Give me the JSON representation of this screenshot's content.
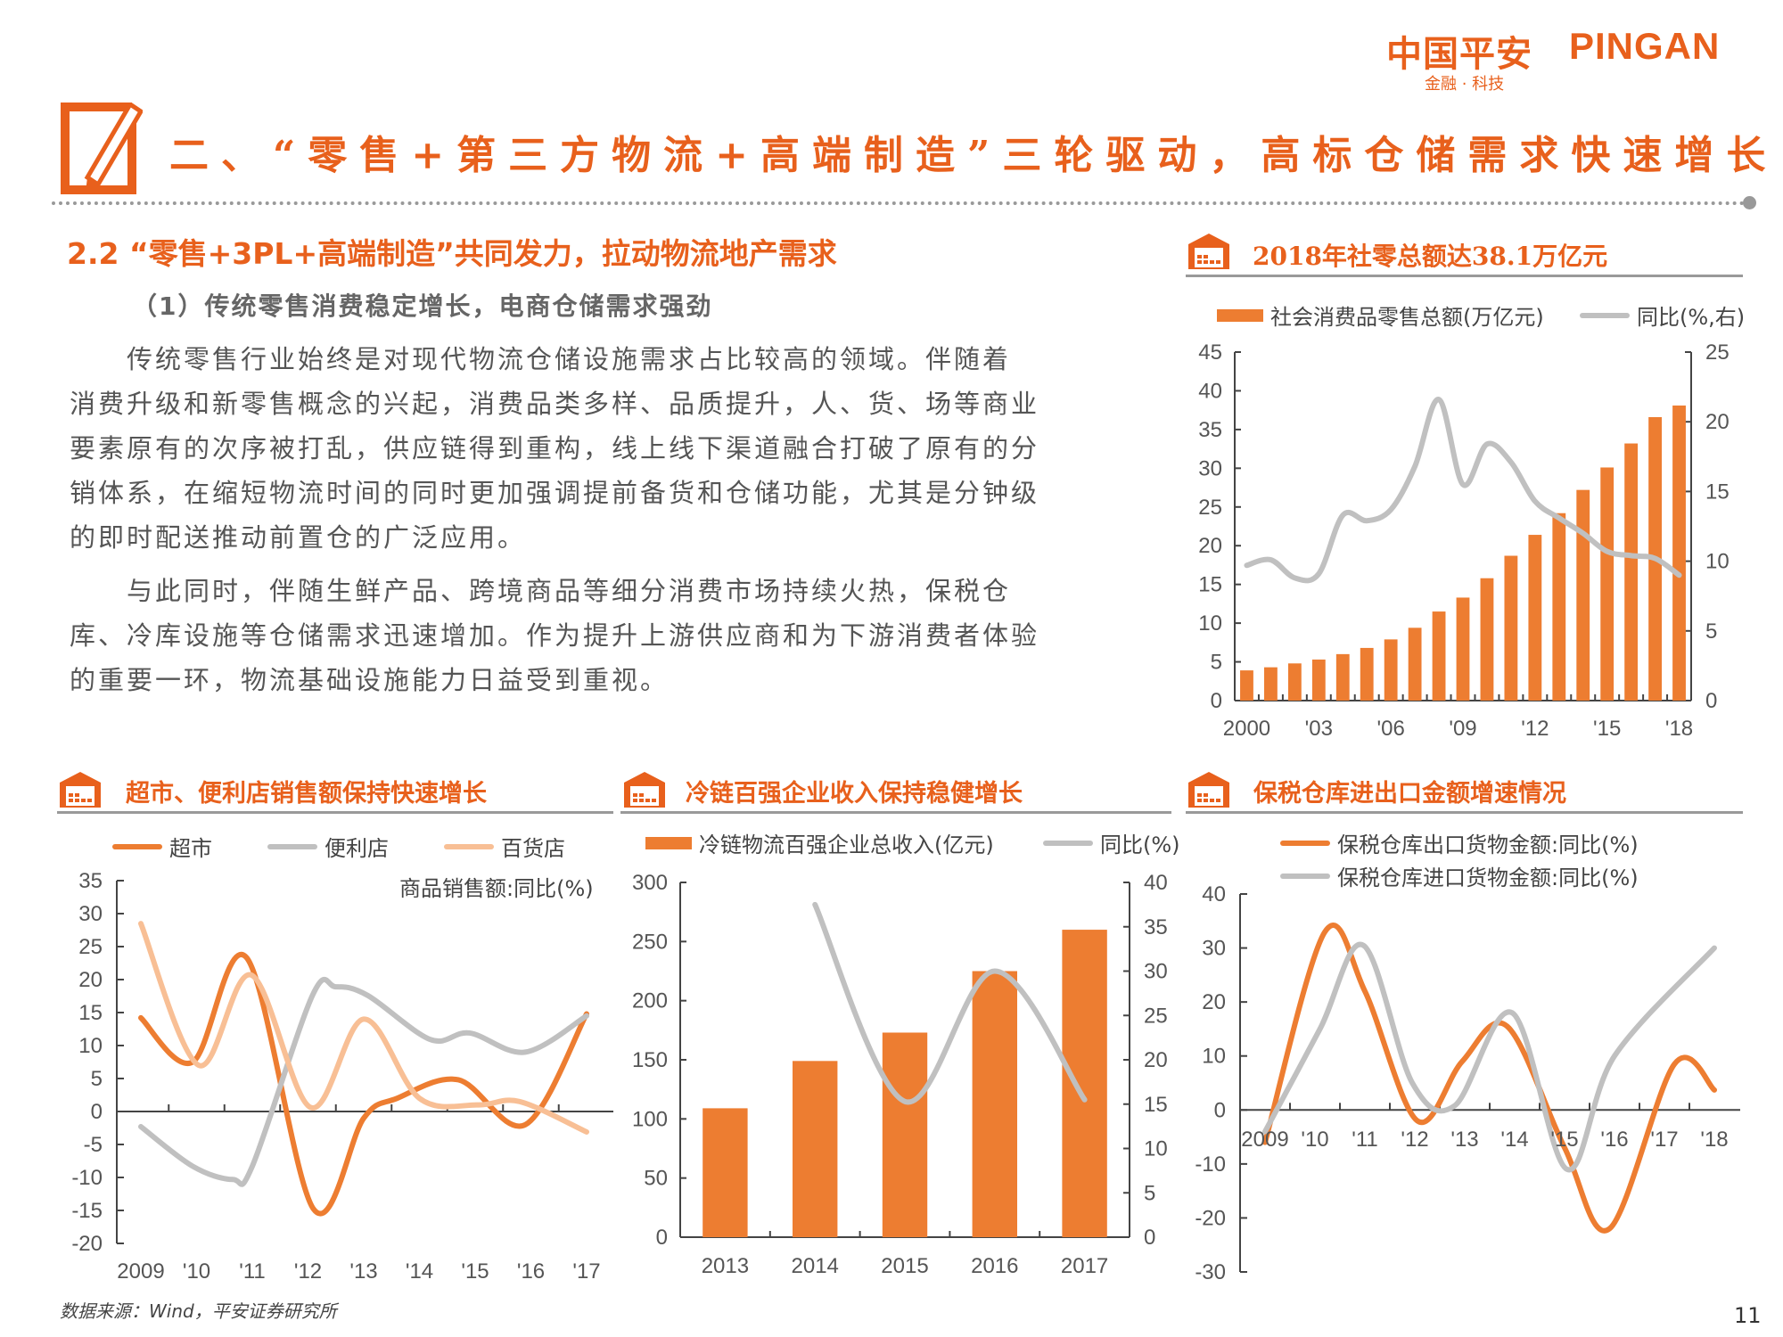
{
  "logo": {
    "cn": "中国平安",
    "en": "PINGAN",
    "tagline": "金融 · 科技"
  },
  "header": {
    "title": "二、“零售+第三方物流+高端制造”三轮驱动，高标仓储需求快速增长"
  },
  "section": {
    "heading": "2.2 “零售+3PL+高端制造”共同发力，拉动物流地产需求",
    "subheading": "（1）传统零售消费稳定增长，电商仓储需求强劲",
    "paragraphs": [
      [
        "传统零售行业始终是对现代物流仓储设施需求占比较高的领域。伴随着",
        "消费升级和新零售概念的兴起，消费品类多样、品质提升，人、货、场等商业",
        "要素原有的次序被打乱，供应链得到重构，线上线下渠道融合打破了原有的分",
        "销体系，在缩短物流时间的同时更加强调提前备货和仓储功能，尤其是分钟级",
        "的即时配送推动前置仓的广泛应用。"
      ],
      [
        "与此同时，伴随生鲜产品、跨境商品等细分消费市场持续火热，保税仓",
        "库、冷库设施等仓储需求迅速增加。作为提升上游供应商和为下游消费者体验",
        "的重要一环，物流基础设施能力日益受到重视。"
      ]
    ]
  },
  "footer": {
    "source": "数据来源：Wind，平安证券研究所",
    "page": "11"
  },
  "colors": {
    "accent": "#e8601c",
    "bar": "#ed7d31",
    "gray_line": "#c0c0c0",
    "light_orange": "#f8bf95"
  },
  "chart_data": [
    {
      "type": "bar+line",
      "title": "2018年社零总额达38.1万亿元",
      "categories": [
        "2000",
        "2001",
        "2002",
        "2003",
        "2004",
        "2005",
        "2006",
        "2007",
        "2008",
        "2009",
        "2010",
        "2011",
        "2012",
        "2013",
        "2014",
        "2015",
        "2016",
        "2017",
        "2018"
      ],
      "x_tick_labels": [
        "2000",
        "'03",
        "'06",
        "'09",
        "'12",
        "'15",
        "'18"
      ],
      "series": [
        {
          "name": "社会消费品零售总额(万亿元)",
          "type": "bar",
          "axis": "left",
          "color": "#ed7d31",
          "values": [
            3.9,
            4.3,
            4.8,
            5.3,
            6.0,
            6.8,
            7.9,
            9.4,
            11.5,
            13.3,
            15.8,
            18.7,
            21.4,
            24.2,
            27.2,
            30.1,
            33.2,
            36.6,
            38.1
          ]
        },
        {
          "name": "同比(%,右)",
          "type": "line",
          "axis": "right",
          "color": "#c0c0c0",
          "values": [
            9.7,
            10.1,
            8.8,
            9.1,
            13.3,
            12.9,
            13.7,
            16.8,
            21.6,
            15.5,
            18.4,
            17.1,
            14.3,
            13.1,
            12.0,
            10.7,
            10.4,
            10.2,
            9.0
          ]
        }
      ],
      "ylim_left": [
        0,
        45
      ],
      "ytick_step_left": 5,
      "ylim_right": [
        0,
        25
      ],
      "ytick_step_right": 5,
      "legend": "top",
      "grid": false
    },
    {
      "type": "line",
      "title": "超市、便利店销售额保持快速增长",
      "annotation": "商品销售额:同比(%)",
      "x_tick_labels": [
        "2009",
        "'10",
        "'11",
        "'12",
        "'13",
        "'14",
        "'15",
        "'16",
        "'17"
      ],
      "x_range": [
        2009,
        2017
      ],
      "series": [
        {
          "name": "超市",
          "color": "#ed7d31",
          "points": [
            [
              2009,
              14.2
            ],
            [
              2009.93,
              7.5
            ],
            [
              2010.9,
              23.3
            ],
            [
              2012.1,
              -14.8
            ],
            [
              2013,
              -1
            ],
            [
              2013.6,
              2
            ],
            [
              2014.7,
              4.8
            ],
            [
              2015.9,
              -2
            ],
            [
              2017,
              14.8
            ]
          ]
        },
        {
          "name": "便利店",
          "color": "#c0c0c0",
          "points": [
            [
              2009,
              -2.3
            ],
            [
              2009.93,
              -8.3
            ],
            [
              2010.65,
              -10.3
            ],
            [
              2011,
              -8.3
            ],
            [
              2012.08,
              17.6
            ],
            [
              2012.5,
              18.9
            ],
            [
              2013.07,
              17.6
            ],
            [
              2014.2,
              10.9
            ],
            [
              2014.9,
              11.9
            ],
            [
              2015.9,
              9
            ],
            [
              2017,
              14.5
            ]
          ]
        },
        {
          "name": "百货店",
          "color": "#f8bf95",
          "points": [
            [
              2009,
              28.5
            ],
            [
              2010.04,
              7
            ],
            [
              2010.98,
              20.7
            ],
            [
              2012.05,
              0.6
            ],
            [
              2013,
              14
            ],
            [
              2014,
              2
            ],
            [
              2015.05,
              1
            ],
            [
              2015.8,
              1.5
            ],
            [
              2017,
              -3.1
            ]
          ]
        }
      ],
      "ylim": [
        -20,
        35
      ],
      "ytick_step": 5,
      "legend": "top",
      "grid": false
    },
    {
      "type": "bar+line",
      "title": "冷链百强企业收入保持稳健增长",
      "categories": [
        "2013",
        "2014",
        "2015",
        "2016",
        "2017"
      ],
      "series": [
        {
          "name": "冷链物流百强企业总收入(亿元)",
          "type": "bar",
          "axis": "left",
          "color": "#ed7d31",
          "values": [
            109,
            149,
            173,
            225,
            260
          ]
        },
        {
          "name": "同比(%)",
          "type": "line",
          "axis": "right",
          "color": "#c0c0c0",
          "values": [
            null,
            37.5,
            15.3,
            30,
            15.5
          ]
        }
      ],
      "ylim_left": [
        0,
        300
      ],
      "ytick_step_left": 50,
      "ylim_right": [
        0,
        40
      ],
      "ytick_step_right": 5,
      "legend": "top",
      "grid": false
    },
    {
      "type": "line",
      "title": "保税仓库进出口金额增速情况",
      "x_tick_labels": [
        "2009",
        "'10",
        "'11",
        "'12",
        "'13",
        "'14",
        "'15",
        "'16",
        "'17",
        "'18"
      ],
      "x_range": [
        2009,
        2018
      ],
      "series": [
        {
          "name": "保税仓库出口货物金额:同比(%)",
          "color": "#ed7d31",
          "points": [
            [
              2009,
              -6
            ],
            [
              2010.2,
              33
            ],
            [
              2011,
              22
            ],
            [
              2012.05,
              -2
            ],
            [
              2012.95,
              9
            ],
            [
              2013.85,
              15.5
            ],
            [
              2015,
              -7
            ],
            [
              2015.9,
              -22
            ],
            [
              2017.2,
              8.5
            ],
            [
              2018,
              3.7
            ]
          ]
        },
        {
          "name": "保税仓库进口货物金额:同比(%)",
          "color": "#c0c0c0",
          "points": [
            [
              2009,
              -4
            ],
            [
              2010.1,
              15
            ],
            [
              2010.97,
              30.5
            ],
            [
              2011.95,
              5
            ],
            [
              2012.8,
              0.8
            ],
            [
              2013.95,
              18
            ],
            [
              2015.05,
              -11
            ],
            [
              2016,
              10
            ],
            [
              2018,
              30
            ]
          ]
        }
      ],
      "ylim": [
        -30,
        40
      ],
      "ytick_step": 10,
      "legend": "top",
      "grid": false
    }
  ]
}
